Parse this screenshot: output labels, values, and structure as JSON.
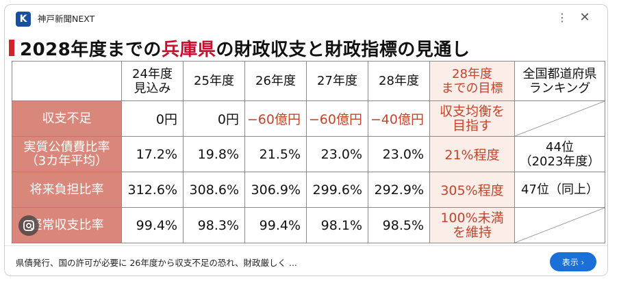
{
  "header": {
    "source_name": "神戸新聞NEXT",
    "more_icon": "kebab-menu-icon",
    "close_icon": "close-icon"
  },
  "image": {
    "headline_pre": "2028年度までの",
    "headline_accent": "兵庫県",
    "headline_post": "の財政収支と財政指標の見通し",
    "table": {
      "columns": [
        "24年度\n見込み",
        "25年度",
        "26年度",
        "27年度",
        "28年度",
        "28年度\nまでの目標",
        "全国都道府県\nランキング"
      ],
      "rows": [
        {
          "label": "収支不足",
          "values": [
            "0円",
            "0円",
            "−60億円",
            "−60億円",
            "−40億円"
          ],
          "target": "収支均衡を\n目指す",
          "rank": ""
        },
        {
          "label": "実質公債費比率\n（3カ年平均）",
          "values": [
            "17.2%",
            "19.8%",
            "21.5%",
            "23.0%",
            "23.0%"
          ],
          "target": "21%程度",
          "rank": "44位\n（2023年度）"
        },
        {
          "label": "将来負担比率",
          "values": [
            "312.6%",
            "308.6%",
            "306.9%",
            "299.6%",
            "292.9%"
          ],
          "target": "305%程度",
          "rank": "47位（同上）"
        },
        {
          "label": "経常収支比率",
          "values": [
            "99.4%",
            "98.3%",
            "99.4%",
            "98.1%",
            "98.5%"
          ],
          "target": "100%未満\nを維持",
          "rank": ""
        }
      ]
    },
    "accent_color": "#c8102e",
    "rowhead_color": "#d8877a",
    "target_text_color": "#c4442b",
    "lens_icon": "google-lens-icon"
  },
  "footer": {
    "caption": "県債発行、国の許可が必要に 26年度から収支不足の恐れ、財政厳しく ...",
    "show_button": "表示 ›"
  }
}
